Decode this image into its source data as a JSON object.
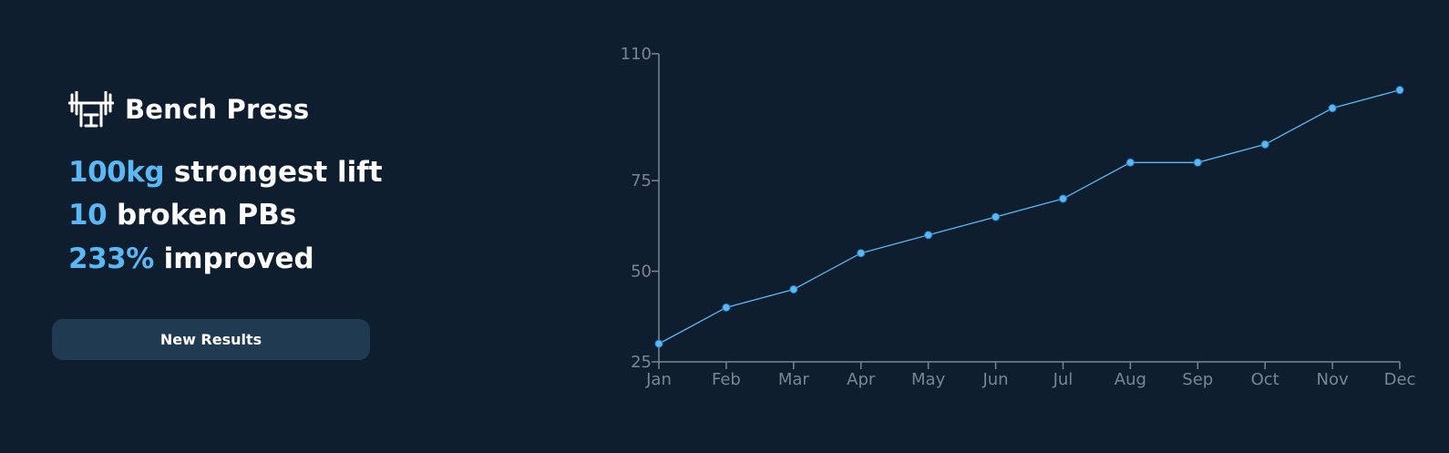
{
  "panel": {
    "title": "Bench Press",
    "icon": "barbell-bench-icon",
    "stats": [
      {
        "value": "100kg",
        "label": "strongest lift"
      },
      {
        "value": "10",
        "label": "broken PBs"
      },
      {
        "value": "233%",
        "label": "improved"
      }
    ],
    "button_label": "New Results"
  },
  "colors": {
    "background": "#0f1e2e",
    "accent": "#5bb8f5",
    "button": "#1f3a51",
    "axis": "#7b8591"
  },
  "chart_data": {
    "type": "line",
    "categories": [
      "Jan",
      "Feb",
      "Mar",
      "Apr",
      "May",
      "Jun",
      "Jul",
      "Aug",
      "Sep",
      "Oct",
      "Nov",
      "Dec"
    ],
    "series": [
      {
        "values": [
          30,
          40,
          45,
          55,
          60,
          65,
          70,
          80,
          80,
          85,
          95,
          100
        ]
      }
    ],
    "yticks": [
      25,
      50,
      75,
      110
    ],
    "ylim": [
      25,
      110
    ],
    "title": "",
    "xlabel": "",
    "ylabel": "",
    "grid": false,
    "legend": "none"
  }
}
